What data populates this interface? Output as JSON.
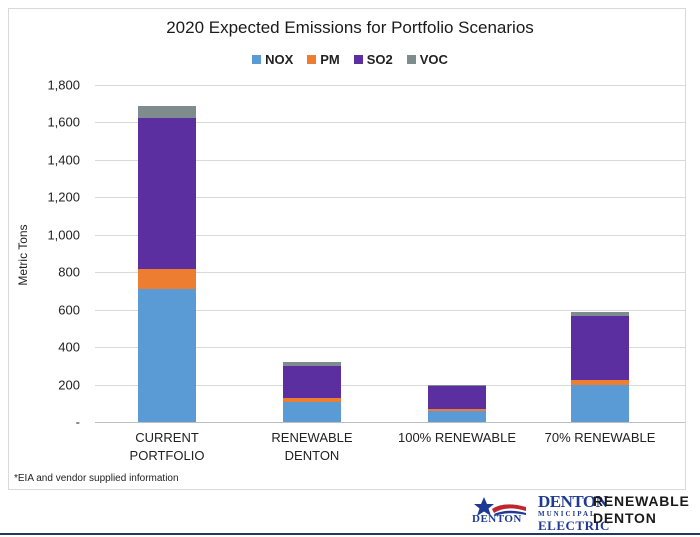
{
  "chart_data": {
    "type": "bar",
    "stacked": true,
    "title": "2020 Expected Emissions for Portfolio Scenarios",
    "ylabel": "Metric Tons",
    "xlabel": "",
    "ylim": [
      0,
      1800
    ],
    "yticks": [
      0,
      200,
      400,
      600,
      800,
      1000,
      1200,
      1400,
      1600,
      1800
    ],
    "ytick_labels": [
      "-",
      "200",
      "400",
      "600",
      "800",
      "1,000",
      "1,200",
      "1,400",
      "1,600",
      "1,800"
    ],
    "categories": [
      "CURRENT\nPORTFOLIO",
      "RENEWABLE\nDENTON",
      "100% RENEWABLE",
      "70% RENEWABLE"
    ],
    "series": [
      {
        "name": "NOX",
        "color": "#5b9bd5",
        "values": [
          710,
          105,
          60,
          200
        ]
      },
      {
        "name": "PM",
        "color": "#ed7d31",
        "values": [
          105,
          25,
          10,
          25
        ]
      },
      {
        "name": "SO2",
        "color": "#5b2fa0",
        "values": [
          810,
          170,
          120,
          340
        ]
      },
      {
        "name": "VOC",
        "color": "#7f8c8d",
        "values": [
          65,
          20,
          10,
          25
        ]
      }
    ],
    "legend_position": "top-center",
    "grid": true
  },
  "footnote": "*EIA and vendor supplied information",
  "logos": {
    "city_name": "DENTON",
    "utility_top": "DENTON",
    "utility_sub": "MUNICIPAL",
    "utility_bottom": "ELECTRIC",
    "program_line1": "RENEWABLE",
    "program_line2": "DENTON"
  }
}
